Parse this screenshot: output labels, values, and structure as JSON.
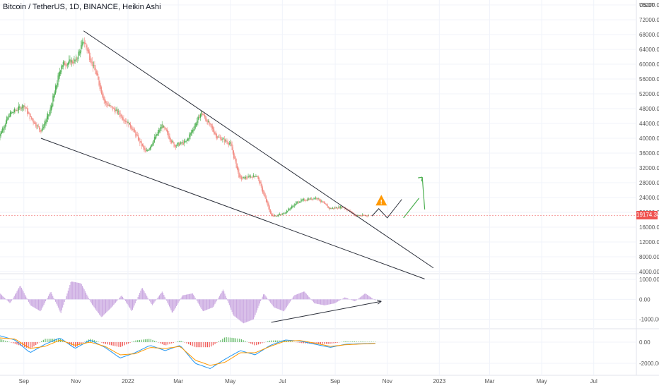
{
  "title": "Bitcoin / TetherUS, 1D, BINANCE, Heikin Ashi",
  "currency": "USDT",
  "last_price": "19174.34",
  "colors": {
    "up": "#26a69a",
    "down": "#ef5350",
    "green_candle": "#4caf50",
    "red_candle": "#f28b82",
    "osc_fill": "#c9a6e0",
    "macd": "#2196f3",
    "signal": "#ff9800",
    "hist_up": "#66bb6a",
    "hist_down": "#ef5350",
    "trendline": "#2a2e39",
    "projection": "#4caf50",
    "warning": "#ff9800",
    "price_badge": "#ef5350"
  },
  "chart_data": [
    {
      "type": "candlestick",
      "panel": "price",
      "title": "Bitcoin / TetherUS, 1D, BINANCE, Heikin Ashi",
      "ylabel": "USDT",
      "ylim": [
        3000,
        76000
      ],
      "y_ticks": [
        "76000.00",
        "72000.00",
        "68000.00",
        "64000.00",
        "60000.00",
        "56000.00",
        "52000.00",
        "48000.00",
        "44000.00",
        "40000.00",
        "36000.00",
        "32000.00",
        "28000.00",
        "24000.00",
        "20000.00",
        "16000.00",
        "12000.00",
        "8000.00",
        "4000.00"
      ],
      "x_ticks": [
        "Sep",
        "Nov",
        "2022",
        "Mar",
        "May",
        "Jul",
        "Sep",
        "Nov",
        "2023",
        "Mar",
        "May",
        "Jul"
      ],
      "approx_closes_by_month": [
        {
          "date": "2021-08-01",
          "close": 39800
        },
        {
          "date": "2021-08-15",
          "close": 46500
        },
        {
          "date": "2021-09-01",
          "close": 49000
        },
        {
          "date": "2021-09-07",
          "close": 46000
        },
        {
          "date": "2021-09-21",
          "close": 42000
        },
        {
          "date": "2021-10-01",
          "close": 47000
        },
        {
          "date": "2021-10-15",
          "close": 60000
        },
        {
          "date": "2021-11-01",
          "close": 61000
        },
        {
          "date": "2021-11-10",
          "close": 66500
        },
        {
          "date": "2021-11-25",
          "close": 57000
        },
        {
          "date": "2021-12-05",
          "close": 49500
        },
        {
          "date": "2021-12-20",
          "close": 47000
        },
        {
          "date": "2022-01-05",
          "close": 43000
        },
        {
          "date": "2022-01-22",
          "close": 36000
        },
        {
          "date": "2022-02-10",
          "close": 43500
        },
        {
          "date": "2022-02-24",
          "close": 38000
        },
        {
          "date": "2022-03-10",
          "close": 39000
        },
        {
          "date": "2022-03-28",
          "close": 47000
        },
        {
          "date": "2022-04-15",
          "close": 40500
        },
        {
          "date": "2022-05-01",
          "close": 38500
        },
        {
          "date": "2022-05-12",
          "close": 29000
        },
        {
          "date": "2022-06-01",
          "close": 30000
        },
        {
          "date": "2022-06-18",
          "close": 19000
        },
        {
          "date": "2022-07-01",
          "close": 19500
        },
        {
          "date": "2022-07-20",
          "close": 23000
        },
        {
          "date": "2022-08-10",
          "close": 24000
        },
        {
          "date": "2022-08-25",
          "close": 21000
        },
        {
          "date": "2022-09-10",
          "close": 21500
        },
        {
          "date": "2022-09-25",
          "close": 19100
        },
        {
          "date": "2022-10-10",
          "close": 19174
        }
      ],
      "trendlines": [
        {
          "from": {
            "date": "2021-11-10",
            "price": 69000
          },
          "to": {
            "date": "2022-12-25",
            "price": 5000
          }
        },
        {
          "from": {
            "date": "2021-09-21",
            "price": 40000
          },
          "to": {
            "date": "2022-12-15",
            "price": 2000
          }
        }
      ],
      "projection_path": [
        {
          "date": "2022-10-14",
          "price": 19000
        },
        {
          "date": "2022-10-22",
          "price": 21000
        },
        {
          "date": "2022-11-01",
          "price": 18500
        },
        {
          "date": "2022-11-18",
          "price": 23500
        }
      ],
      "projection_arrow": [
        {
          "date": "2022-11-20",
          "price": 18500
        },
        {
          "date": "2022-12-12",
          "price": 29500
        }
      ],
      "warning_marker": {
        "date": "2022-10-25",
        "price": 23000
      }
    },
    {
      "type": "area",
      "panel": "oscillator",
      "y_ticks": [
        "1000.00",
        "0.00",
        "-1000.00"
      ],
      "ylim": [
        -1400,
        1000
      ],
      "values_sampled": [
        300,
        -200,
        700,
        -300,
        -600,
        400,
        -700,
        900,
        800,
        -200,
        -900,
        -400,
        200,
        -600,
        600,
        -300,
        400,
        -700,
        200,
        300,
        -600,
        -400,
        500,
        -800,
        -1200,
        -1000,
        300,
        -400,
        -600,
        200,
        400,
        -200,
        -300,
        -200,
        100,
        -100,
        300,
        -50
      ],
      "arrow": {
        "from": {
          "date": "2022-06-18",
          "value": -1150
        },
        "to": {
          "date": "2022-10-25",
          "value": -100
        }
      }
    },
    {
      "type": "line",
      "panel": "macd",
      "y_ticks": [
        "0.00",
        "-2000.00"
      ],
      "ylim": [
        -3000,
        1000
      ],
      "series": [
        {
          "color": "#2196f3",
          "values": [
            600,
            200,
            -1000,
            -200,
            400,
            -600,
            200,
            -500,
            -1500,
            -1000,
            -300,
            -800,
            -300,
            -2000,
            -2500,
            -1600,
            -800,
            -1200,
            -300,
            200,
            100,
            -200,
            -500,
            -200,
            -150,
            -100
          ]
        },
        {
          "color": "#ff9800",
          "values": [
            400,
            300,
            -600,
            -400,
            200,
            -300,
            0,
            -400,
            -1200,
            -1100,
            -500,
            -600,
            -400,
            -1700,
            -2200,
            -1900,
            -1000,
            -1000,
            -400,
            100,
            150,
            -100,
            -400,
            -250,
            -180,
            -120
          ]
        }
      ]
    }
  ]
}
